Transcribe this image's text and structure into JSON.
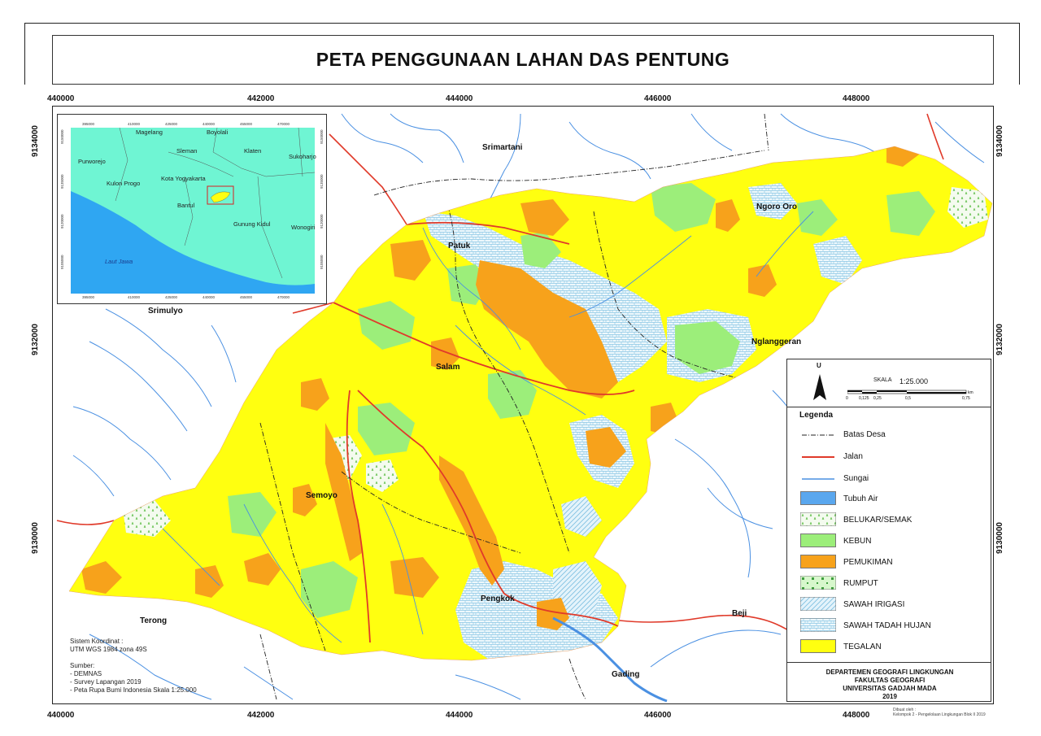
{
  "title": "PETA PENGGUNAAN LAHAN DAS PENTUNG",
  "x_ticks_top": [
    "440000",
    "442000",
    "444000",
    "446000",
    "448000"
  ],
  "x_ticks_bottom": [
    "440000",
    "442000",
    "444000",
    "446000",
    "448000"
  ],
  "y_ticks_left": [
    "9134000",
    "9132000",
    "9130000"
  ],
  "y_ticks_right": [
    "9134000",
    "9132000",
    "9130000"
  ],
  "places": {
    "srimartani": "Srimartani",
    "ngoro_oro": "Ngoro Oro",
    "patuk": "Patuk",
    "srimulyo": "Srimulyo",
    "nglanggeran": "Nglanggeran",
    "salam": "Salam",
    "semoyo": "Semoyo",
    "terong": "Terong",
    "pengkok": "Pengkok",
    "beji": "Beji",
    "gading": "Gading"
  },
  "inset": {
    "labels": {
      "magelang": "Magelang",
      "boyolali": "Boyolali",
      "sleman": "Sleman",
      "klaten": "Klaten",
      "purworejo": "Purworejo",
      "sukoharjo": "Sukoharjo",
      "kota_yogyakarta": "Kota Yogyakarta",
      "kulon_progo": "Kulon Progo",
      "bantul": "Bantul",
      "gunung_kidul": "Gunung Kidul",
      "wonogiri": "Wonogiri",
      "laut_jawa": "Laut Jawa"
    },
    "x_ticks_top": [
      "395000",
      "410000",
      "425000",
      "440000",
      "455000",
      "470000"
    ],
    "x_ticks_bottom": [
      "395000",
      "410000",
      "425000",
      "440000",
      "455000",
      "470000"
    ],
    "y_ticks_left": [
      "9150000",
      "9135000",
      "9120000",
      "9105000"
    ],
    "y_ticks_right": [
      "9150000",
      "9135000",
      "9120000",
      "9105000"
    ],
    "colors": {
      "land": "#6ff5d3",
      "sea": "#2fa6f2",
      "highlight": "#d82020"
    }
  },
  "legend": {
    "north": "U",
    "scale_label": "SKALA",
    "scale_value": "1:25.000",
    "scale_ticks": [
      "0",
      "0,125",
      "0,25",
      "0,5",
      "0,75"
    ],
    "scale_unit": "km",
    "heading": "Legenda",
    "items": [
      {
        "label": "Batas Desa",
        "kind": "line-dashdot",
        "color": "#222222"
      },
      {
        "label": "Jalan",
        "kind": "line",
        "color": "#e03a2a"
      },
      {
        "label": "Sungai",
        "kind": "line",
        "color": "#4a90e2"
      },
      {
        "label": "Tubuh Air",
        "kind": "fill",
        "color": "#5aa7ee"
      },
      {
        "label": "BELUKAR/SEMAK",
        "kind": "pattern-semak",
        "color": "#dff5d6"
      },
      {
        "label": "KEBUN",
        "kind": "fill",
        "color": "#9cee7a"
      },
      {
        "label": "PEMUKIMAN",
        "kind": "fill",
        "color": "#f7a21b"
      },
      {
        "label": "RUMPUT",
        "kind": "pattern-rumput",
        "color": "#d7f7cc"
      },
      {
        "label": "SAWAH IRIGASI",
        "kind": "pattern-irigasi",
        "color": "#e4f3fb"
      },
      {
        "label": "SAWAH TADAH HUJAN",
        "kind": "pattern-tadah",
        "color": "#eef8fc"
      },
      {
        "label": "TEGALAN",
        "kind": "fill",
        "color": "#ffff10"
      }
    ]
  },
  "colors": {
    "tegalan": "#ffff10",
    "pemukiman": "#f7a21b",
    "kebun": "#9cee7a",
    "sawah": "#eaf6fb",
    "river": "#4a90e2",
    "road": "#e03a2a",
    "boundary": "#222222"
  },
  "notes": {
    "coord_label": "Sistem Koordinat :",
    "coord_value": "UTM WGS 1984 zona 49S",
    "source_label": "Sumber:",
    "sources": [
      "- DEMNAS",
      "- Survey Lapangan 2019",
      "- Peta Rupa Bumi Indonesia Skala 1:25.000"
    ]
  },
  "department": [
    "DEPARTEMEN GEOGRAFI LINGKUNGAN",
    "FAKULTAS GEOGRAFI",
    "UNIVERSITAS GADJAH MADA",
    "2019"
  ],
  "credit": [
    "Dibuat oleh :",
    "Kelompok 2 - Pengelolaan Lingkungan Blok II 2019"
  ]
}
